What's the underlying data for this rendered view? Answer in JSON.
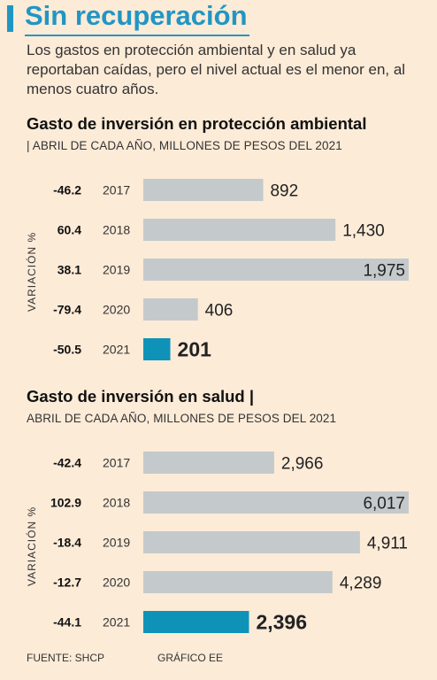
{
  "header": {
    "title": "Sin recuperación",
    "intro": "Los gastos en protección ambiental y en salud ya reportaban caídas, pero el nivel actual es el menor en, al menos cuatro años."
  },
  "colors": {
    "accent": "#2196c4",
    "bar": "#c4c9cb",
    "highlight": "#0f92b8",
    "background": "#fcebd7"
  },
  "chart_data": [
    {
      "type": "bar",
      "orientation": "horizontal",
      "title": "Gasto de inversión en protección ambiental",
      "subtitle": "| ABRIL DE CADA AÑO, MILLONES DE PESOS DEL 2021",
      "ylabel": "VARIACIÓN %",
      "categories": [
        "2017",
        "2018",
        "2019",
        "2020",
        "2021"
      ],
      "values": [
        892,
        1430,
        1975,
        406,
        201
      ],
      "value_labels": [
        "892",
        "1,430",
        "1,975",
        "406",
        "201"
      ],
      "variation": [
        "-46.2",
        "60.4",
        "38.1",
        "-79.4",
        "-50.5"
      ],
      "highlight_index": 4,
      "xlim": [
        0,
        1975
      ]
    },
    {
      "type": "bar",
      "orientation": "horizontal",
      "title": "Gasto de inversión en salud |",
      "subtitle": "ABRIL DE CADA AÑO, MILLONES DE PESOS DEL 2021",
      "ylabel": "VARIACIÓN %",
      "categories": [
        "2017",
        "2018",
        "2019",
        "2020",
        "2021"
      ],
      "values": [
        2966,
        6017,
        4911,
        4289,
        2396
      ],
      "value_labels": [
        "2,966",
        "6,017",
        "4,911",
        "4,289",
        "2,396"
      ],
      "variation": [
        "-42.4",
        "102.9",
        "-18.4",
        "-12.7",
        "-44.1"
      ],
      "highlight_index": 4,
      "xlim": [
        0,
        6017
      ]
    }
  ],
  "footer": {
    "source": "FUENTE: SHCP",
    "credit": "GRÁFICO EE"
  }
}
